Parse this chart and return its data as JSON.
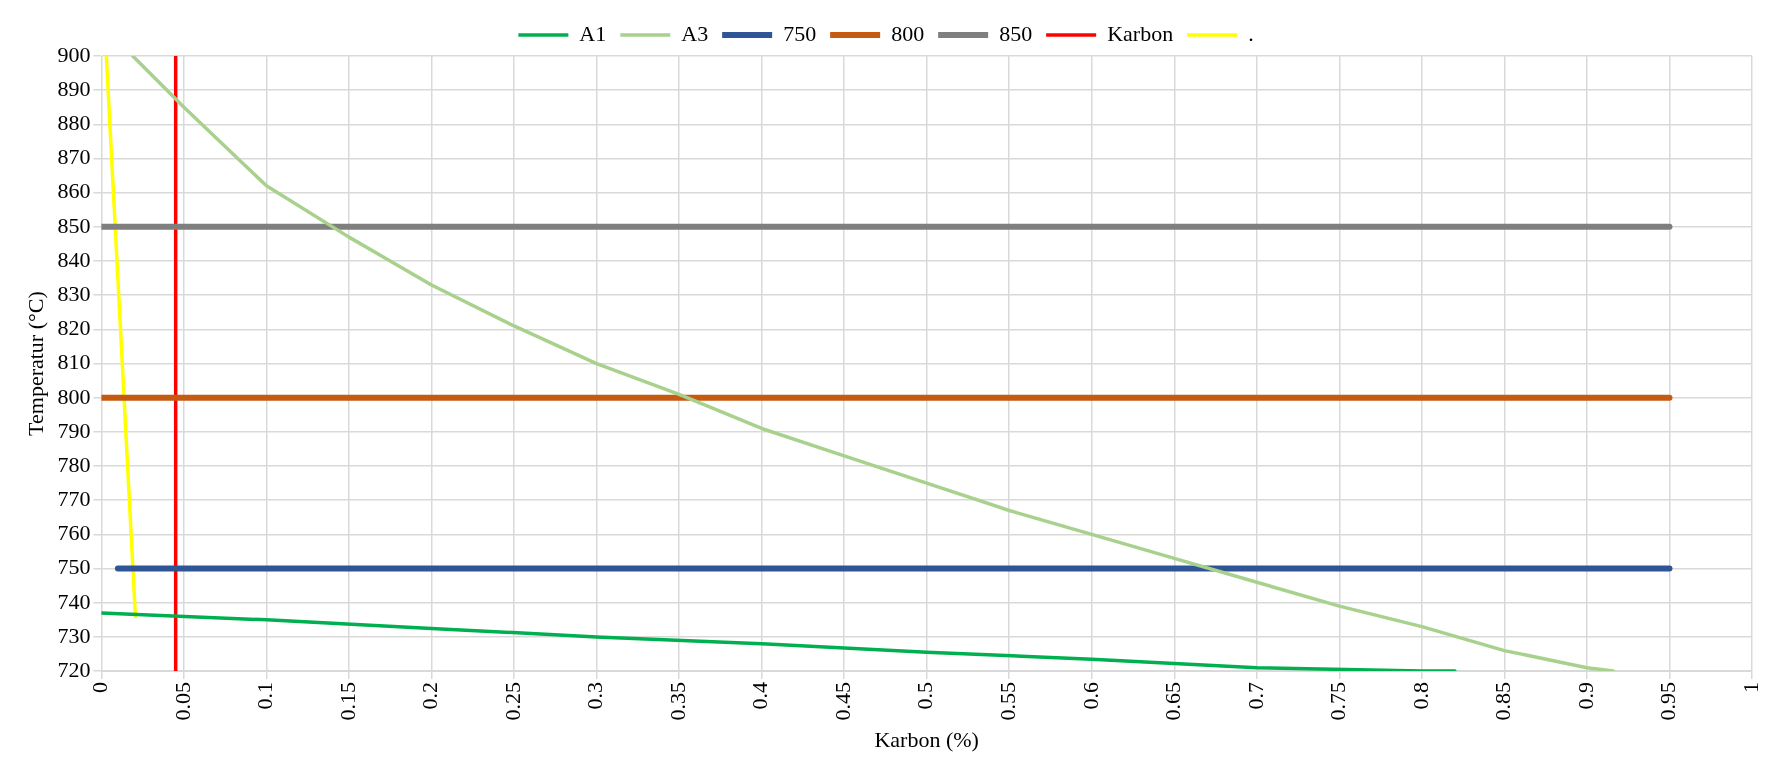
{
  "chart_data": {
    "type": "line",
    "xlabel": "Karbon (%)",
    "ylabel": "Temperatur (°C)",
    "xlim": [
      0,
      1
    ],
    "xticks": [
      0,
      0.05,
      0.1,
      0.15,
      0.2,
      0.25,
      0.3,
      0.35,
      0.4,
      0.45,
      0.5,
      0.55,
      0.6,
      0.65,
      0.7,
      0.75,
      0.8,
      0.85,
      0.9,
      0.95,
      1
    ],
    "ylim": [
      720,
      900
    ],
    "yticks": [
      720,
      730,
      740,
      750,
      760,
      770,
      780,
      790,
      800,
      810,
      820,
      830,
      840,
      850,
      860,
      870,
      880,
      890,
      900
    ],
    "grid": true,
    "legend": "top",
    "series": [
      {
        "name": "A1",
        "color": "#00b050",
        "x": [
          0,
          0.1,
          0.2,
          0.3,
          0.4,
          0.5,
          0.6,
          0.7,
          0.8,
          0.82
        ],
        "values": [
          737,
          735,
          732.5,
          730,
          728,
          725.5,
          723.5,
          721,
          720,
          720
        ]
      },
      {
        "name": "A3",
        "color": "#a9d18e",
        "x": [
          0.019,
          0.05,
          0.1,
          0.15,
          0.2,
          0.25,
          0.3,
          0.35,
          0.4,
          0.45,
          0.5,
          0.55,
          0.6,
          0.65,
          0.7,
          0.75,
          0.8,
          0.85,
          0.9,
          0.916
        ],
        "values": [
          900,
          885,
          862,
          847,
          833,
          821,
          810,
          801,
          791,
          783,
          775,
          767,
          760,
          753,
          746,
          739,
          733,
          726,
          721,
          720
        ]
      },
      {
        "name": "750",
        "color": "#2f5597",
        "x": [
          0.01,
          0.95
        ],
        "values": [
          750,
          750
        ]
      },
      {
        "name": "800",
        "color": "#c55a11",
        "x": [
          0,
          0.95
        ],
        "values": [
          800,
          800
        ]
      },
      {
        "name": "850",
        "color": "#7f7f7f",
        "x": [
          0,
          0.95
        ],
        "values": [
          850,
          850
        ]
      },
      {
        "name": "Karbon",
        "color": "#ff0000",
        "x": [
          0.045,
          0.045
        ],
        "values": [
          720,
          900
        ]
      },
      {
        "name": ".",
        "color": "#ffff00",
        "x": [
          0.003,
          0.0206
        ],
        "values": [
          900,
          736
        ]
      }
    ]
  }
}
